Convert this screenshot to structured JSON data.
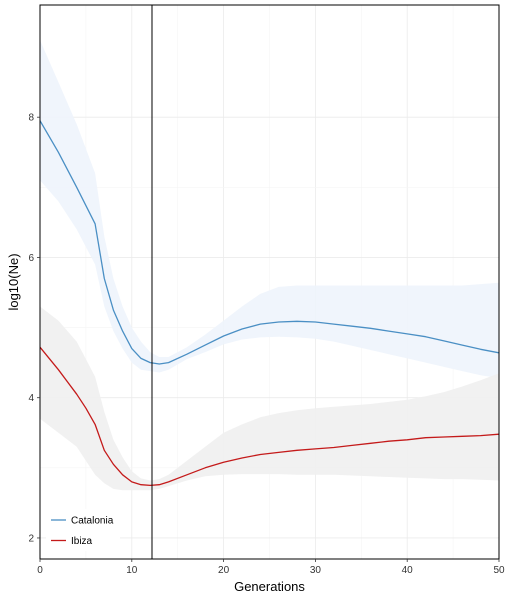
{
  "chart_data": {
    "type": "line",
    "xlabel": "Generations",
    "ylabel": "log10(Ne)",
    "xlim": [
      0,
      50
    ],
    "ylim": [
      1.7,
      9.6
    ],
    "xticks": [
      0,
      10,
      20,
      30,
      40,
      50
    ],
    "yticks": [
      2,
      4,
      6,
      8
    ],
    "xtick_labels": [
      "0",
      "10",
      "20",
      "30",
      "40",
      "50"
    ],
    "ytick_labels": [
      "2",
      "4",
      "6",
      "8"
    ],
    "grid": true,
    "legend_position": "bottom-left",
    "vline_x": 12.2,
    "series": [
      {
        "name": "Catalonia",
        "color": "#4a8fc4",
        "band_color": "#eef4fc",
        "x": [
          0,
          2,
          4,
          6,
          7,
          8,
          9,
          10,
          11,
          12,
          13,
          14,
          16,
          18,
          20,
          22,
          24,
          26,
          28,
          30,
          32,
          34,
          36,
          38,
          40,
          42,
          44,
          46,
          48,
          50
        ],
        "y": [
          7.95,
          7.5,
          7.0,
          6.48,
          5.7,
          5.25,
          4.95,
          4.7,
          4.56,
          4.5,
          4.48,
          4.5,
          4.62,
          4.75,
          4.88,
          4.98,
          5.05,
          5.08,
          5.09,
          5.08,
          5.05,
          5.02,
          4.99,
          4.95,
          4.91,
          4.87,
          4.81,
          4.75,
          4.69,
          4.64
        ],
        "lower": [
          7.1,
          6.8,
          6.4,
          5.9,
          5.3,
          4.95,
          4.7,
          4.5,
          4.4,
          4.38,
          4.36,
          4.4,
          4.55,
          4.65,
          4.76,
          4.83,
          4.86,
          4.87,
          4.86,
          4.84,
          4.8,
          4.74,
          4.68,
          4.62,
          4.56,
          4.5,
          4.44,
          4.38,
          4.32,
          4.28
        ],
        "upper": [
          9.1,
          8.5,
          7.9,
          7.2,
          6.3,
          5.7,
          5.3,
          5.0,
          4.8,
          4.65,
          4.58,
          4.58,
          4.72,
          4.9,
          5.1,
          5.3,
          5.48,
          5.58,
          5.6,
          5.6,
          5.6,
          5.6,
          5.6,
          5.6,
          5.6,
          5.6,
          5.6,
          5.6,
          5.62,
          5.64
        ]
      },
      {
        "name": "Ibiza",
        "color": "#c41a1a",
        "band_color": "#efefef",
        "x": [
          0,
          2,
          4,
          5,
          6,
          7,
          8,
          9,
          10,
          11,
          12,
          13,
          14,
          16,
          18,
          20,
          22,
          24,
          26,
          28,
          30,
          32,
          34,
          36,
          38,
          40,
          42,
          44,
          46,
          48,
          50
        ],
        "y": [
          4.72,
          4.4,
          4.05,
          3.85,
          3.62,
          3.25,
          3.05,
          2.9,
          2.8,
          2.76,
          2.75,
          2.76,
          2.8,
          2.9,
          3.0,
          3.08,
          3.14,
          3.19,
          3.22,
          3.25,
          3.27,
          3.29,
          3.32,
          3.35,
          3.38,
          3.4,
          3.43,
          3.44,
          3.45,
          3.46,
          3.48
        ],
        "lower": [
          3.7,
          3.5,
          3.3,
          3.1,
          2.9,
          2.78,
          2.7,
          2.68,
          2.68,
          2.68,
          2.68,
          2.7,
          2.74,
          2.82,
          2.88,
          2.9,
          2.91,
          2.91,
          2.91,
          2.9,
          2.9,
          2.9,
          2.89,
          2.88,
          2.87,
          2.86,
          2.85,
          2.84,
          2.84,
          2.83,
          2.82
        ],
        "upper": [
          5.3,
          5.1,
          4.8,
          4.55,
          4.3,
          3.8,
          3.4,
          3.15,
          2.95,
          2.85,
          2.82,
          2.84,
          2.9,
          3.1,
          3.3,
          3.5,
          3.62,
          3.72,
          3.78,
          3.82,
          3.85,
          3.87,
          3.89,
          3.91,
          3.94,
          3.97,
          4.02,
          4.08,
          4.16,
          4.25,
          4.35
        ]
      }
    ]
  }
}
